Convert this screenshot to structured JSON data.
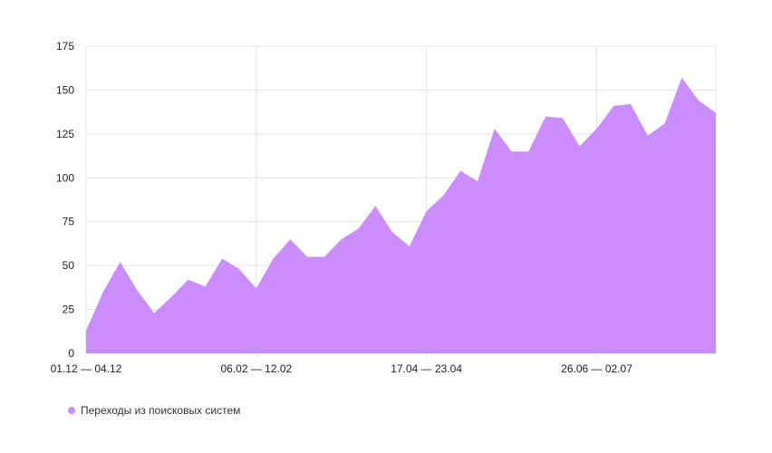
{
  "chart_data": {
    "type": "area",
    "title": "",
    "xlabel": "",
    "ylabel": "",
    "ylim": [
      0,
      175
    ],
    "y_ticks": [
      0,
      25,
      50,
      75,
      100,
      125,
      150,
      175
    ],
    "x_tick_labels": [
      {
        "index": 0,
        "label": "01.12 — 04.12"
      },
      {
        "index": 10,
        "label": "06.02 — 12.02"
      },
      {
        "index": 20,
        "label": "17.04 — 23.04"
      },
      {
        "index": 30,
        "label": "26.06 — 02.07"
      }
    ],
    "grid": true,
    "legend_position": "bottom-left",
    "series": [
      {
        "name": "Переходы из поисковых систем",
        "color": "#cc8dfc",
        "values": [
          13,
          35,
          52,
          36,
          23,
          32,
          42,
          38,
          54,
          48,
          37,
          54,
          65,
          55,
          55,
          65,
          71,
          84,
          69,
          61,
          81,
          90,
          104,
          98,
          128,
          115,
          115,
          135,
          134,
          118,
          128,
          141,
          142,
          124,
          131,
          157,
          144,
          137
        ]
      }
    ]
  },
  "colors": {
    "grid": "#e4e0f0",
    "axis_text": "#222222"
  }
}
